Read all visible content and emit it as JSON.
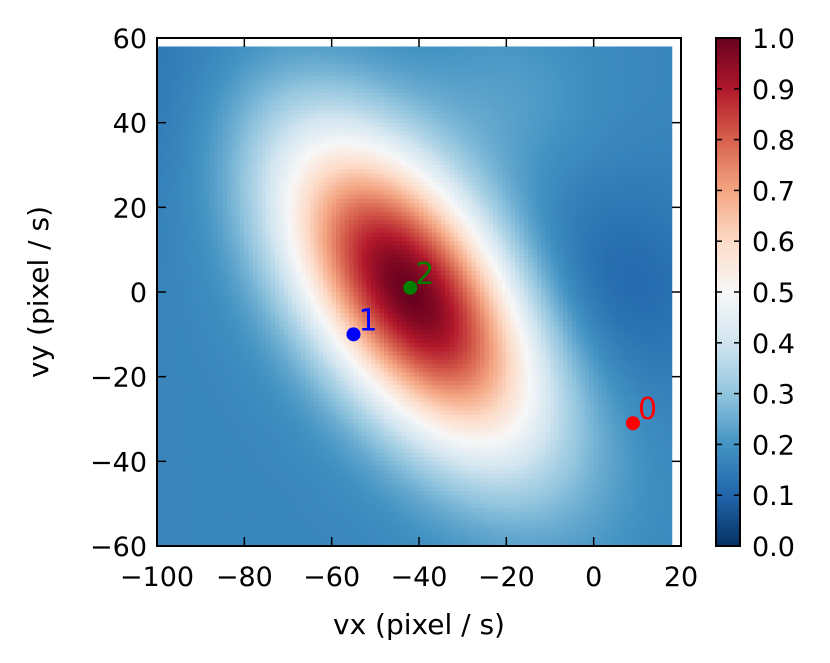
{
  "chart_data": {
    "type": "heatmap",
    "xlabel": "vx (pixel / s)",
    "ylabel": "vy (pixel / s)",
    "xlim": [
      -100,
      20
    ],
    "ylim": [
      60,
      -60
    ],
    "x_ticks": [
      -100,
      -80,
      -60,
      -40,
      -20,
      0,
      20
    ],
    "y_ticks": [
      -60,
      -40,
      -20,
      0,
      20,
      40,
      60
    ],
    "x_tick_labels": [
      "−100",
      "−80",
      "−60",
      "−40",
      "−20",
      "0",
      "20"
    ],
    "y_tick_labels": [
      "−60",
      "−40",
      "−20",
      "0",
      "20",
      "40",
      "60"
    ],
    "grid": false,
    "colormap": "RdBu_r",
    "colorbar": {
      "range": [
        0.0,
        1.0
      ],
      "ticks": [
        0.0,
        0.1,
        0.2,
        0.3,
        0.4,
        0.5,
        0.6,
        0.7,
        0.8,
        0.9,
        1.0
      ],
      "tick_labels": [
        "0.0",
        "0.1",
        "0.2",
        "0.3",
        "0.4",
        "0.5",
        "0.6",
        "0.7",
        "0.8",
        "0.9",
        "1.0"
      ]
    },
    "field_description": "Elliptical peak near (-42, 0) tilted along the diagonal, decaying to low values near the right edge.",
    "peak": {
      "vx": -42,
      "vy": 0,
      "value": 1.0
    },
    "points": [
      {
        "label": "0",
        "vx": 9,
        "vy": -31,
        "color": "#ff0000"
      },
      {
        "label": "1",
        "vx": -55,
        "vy": -10,
        "color": "#0000ff"
      },
      {
        "label": "2",
        "vx": -42,
        "vy": 1,
        "color": "#008000"
      }
    ]
  }
}
